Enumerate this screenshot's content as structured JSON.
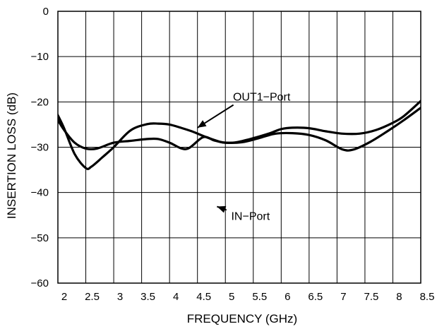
{
  "chart_data": {
    "type": "line",
    "title": "",
    "xlabel": "FREQUENCY (GHz)",
    "ylabel": "INSERTION LOSS (dB)",
    "xlim": [
      2,
      8.5
    ],
    "ylim": [
      -60,
      0
    ],
    "grid": true,
    "x_ticks": [
      2,
      2.5,
      3,
      3.5,
      4,
      4.5,
      5,
      5.5,
      6,
      6.5,
      7,
      7.5,
      8,
      8.5
    ],
    "x_tick_labels": [
      "2",
      "2.5",
      "3",
      "3.5",
      "4",
      "4.5",
      "5",
      "5.5",
      "6",
      "6.5",
      "7",
      "7.5",
      "8",
      "8.5"
    ],
    "y_ticks": [
      0,
      -10,
      -20,
      -30,
      -40,
      -50,
      -60
    ],
    "y_tick_labels": [
      "0",
      "−10",
      "−20",
      "−30",
      "−40",
      "−50",
      "−60"
    ],
    "series": [
      {
        "name": "OUT1−Port",
        "x": [
          1.93,
          2.1,
          2.3,
          2.5,
          2.7,
          3.0,
          3.3,
          3.6,
          3.8,
          4.0,
          4.3,
          4.6,
          4.8,
          5.0,
          5.3,
          5.6,
          5.9,
          6.2,
          6.5,
          6.8,
          7.1,
          7.3,
          7.6,
          7.9,
          8.2,
          8.5
        ],
        "y": [
          -22.5,
          -26,
          -29,
          -30.3,
          -30.3,
          -29,
          -28.6,
          -28.2,
          -28.2,
          -29,
          -30.4,
          -27.8,
          -28.5,
          -29,
          -28.9,
          -28,
          -27,
          -26.9,
          -27.3,
          -28.5,
          -30.5,
          -30.5,
          -28.8,
          -26.5,
          -24,
          -21.3
        ]
      },
      {
        "name": "IN−Port",
        "x": [
          1.93,
          2.1,
          2.3,
          2.5,
          2.6,
          2.8,
          3.0,
          3.3,
          3.6,
          3.8,
          4.0,
          4.2,
          4.4,
          4.6,
          4.75,
          4.85,
          4.9,
          5.0,
          5.2,
          5.5,
          5.8,
          6.0,
          6.2,
          6.5,
          6.8,
          7.1,
          7.4,
          7.7,
          8.0,
          8.2,
          8.5
        ],
        "y": [
          -21.3,
          -25.5,
          -31.5,
          -34.6,
          -34.3,
          -32.2,
          -30,
          -26.3,
          -24.9,
          -24.8,
          -25,
          -25.7,
          -26.5,
          -27.5,
          -28.2,
          -28.6,
          -28.8,
          -29,
          -28.9,
          -28,
          -26.9,
          -26,
          -25.7,
          -25.8,
          -26.5,
          -27,
          -27,
          -26.2,
          -24.6,
          -23.1,
          -19.8
        ]
      }
    ],
    "annotations": [
      {
        "text": "OUT1−Port",
        "x": 5.65,
        "y": -18.8,
        "arrow_to": [
          4.5,
          -25.7
        ]
      },
      {
        "text": "IN−Port",
        "x": 5.45,
        "y": -45.1,
        "arrow_to": [
          4.85,
          -43.1
        ]
      }
    ]
  },
  "colors": {
    "line": "#000000",
    "grid": "#000000",
    "background": "#ffffff"
  }
}
